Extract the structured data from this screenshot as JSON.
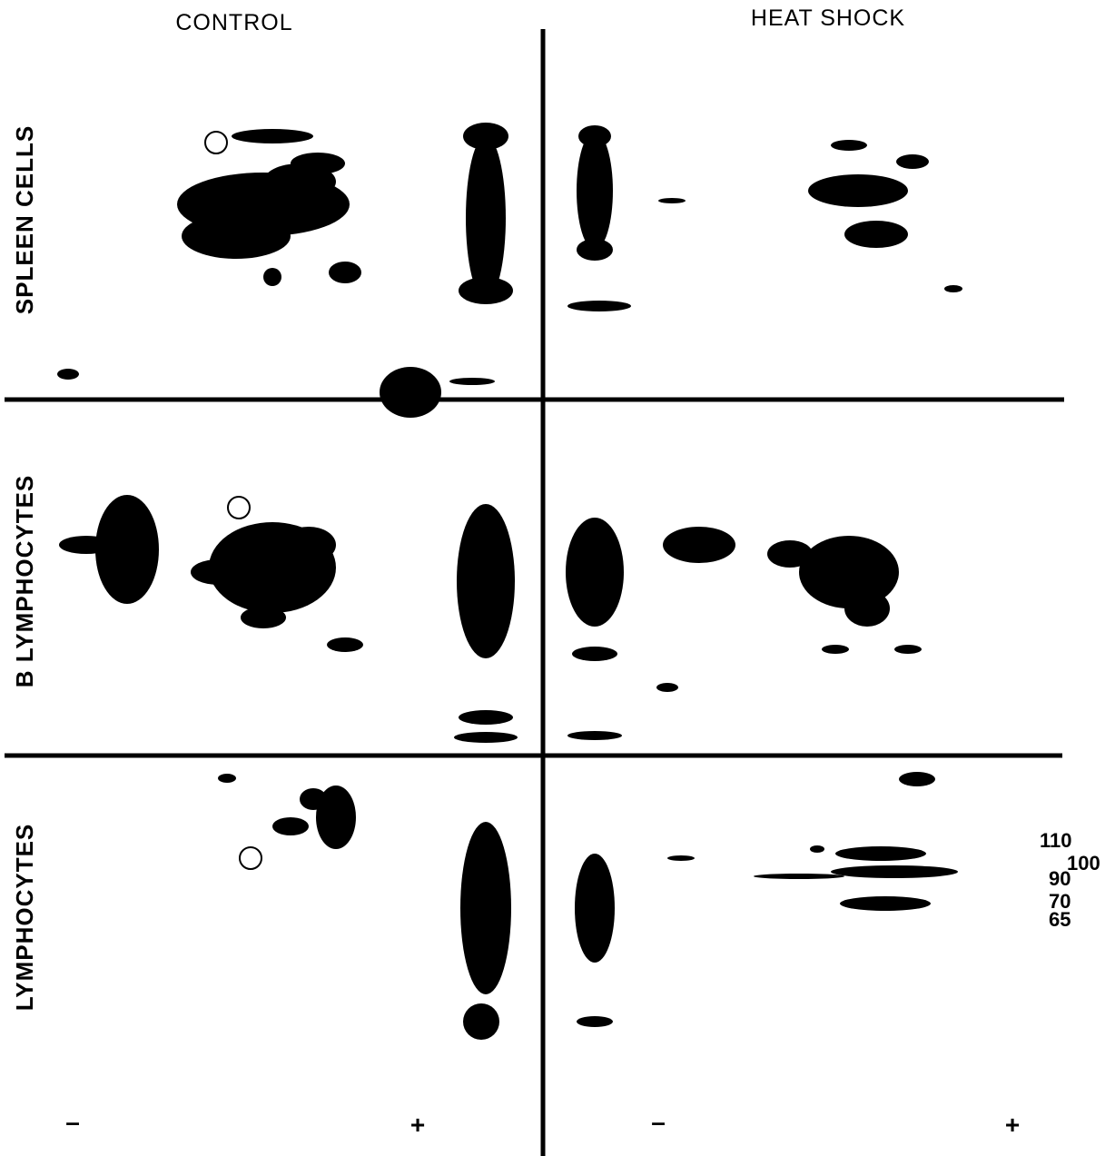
{
  "columns": [
    "CONTROL",
    "HEAT SHOCK"
  ],
  "rows": [
    "SPLEEN CELLS",
    "B LYMPHOCYTES",
    "LYMPHOCYTES"
  ],
  "markers": [
    "110",
    "100",
    "90",
    "70",
    "65"
  ],
  "poles": [
    "–",
    "+",
    "–",
    "+"
  ]
}
